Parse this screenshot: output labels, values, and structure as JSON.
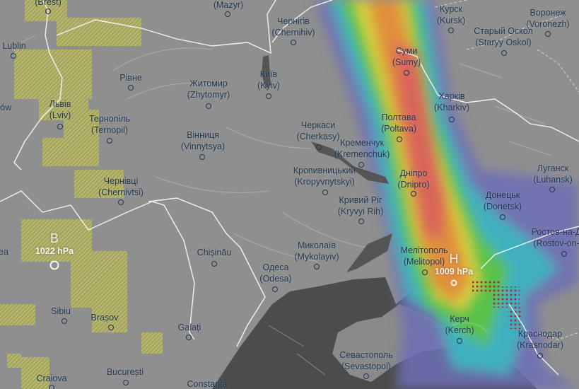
{
  "map": {
    "layer": "rain / precipitation with wind particles",
    "colors": {
      "land": "#8f8f8f",
      "sea": "#4a4a4a",
      "border": "#f2f2f2",
      "label": "#1f3550",
      "snow_hatch": "#c9c84a",
      "rain_light": "#6b6fb8",
      "rain_mid": "#3fb0c0",
      "rain_green": "#5cc24a",
      "rain_yellow": "#d8d040",
      "rain_orange": "#e0903a",
      "rain_heavy": "#d9665a",
      "thunder_dots": "#a0303a"
    },
    "pressure": [
      {
        "letter": "B",
        "value": "1022 hPa",
        "type": "high"
      },
      {
        "letter": "H",
        "value": "1009 hPa",
        "type": "low"
      }
    ],
    "cities": [
      {
        "name": "",
        "latin": "(Brest)"
      },
      {
        "name": "",
        "latin": "(Mazyr)"
      },
      {
        "name": "Чернігів",
        "latin": "(Chernihiv)"
      },
      {
        "name": "Lublin",
        "latin": ""
      },
      {
        "name": "Рівне",
        "latin": ""
      },
      {
        "name": "Житомир",
        "latin": "(Zhytomyr)"
      },
      {
        "name": "Київ",
        "latin": "(Kyiv)"
      },
      {
        "name": "zów",
        "latin": ""
      },
      {
        "name": "Львів",
        "latin": "(Lviv)"
      },
      {
        "name": "Тернопіль",
        "latin": "(Ternopil)"
      },
      {
        "name": "Вінниця",
        "latin": "(Vinnytsya)"
      },
      {
        "name": "Чернівці",
        "latin": "(Chernivtsi)"
      },
      {
        "name": "Черкаси",
        "latin": "(Cherkasy)"
      },
      {
        "name": "Кременчук",
        "latin": "(Kremenchuk)"
      },
      {
        "name": "Кропивницький",
        "latin": "(Kropyvnytskyi)"
      },
      {
        "name": "Суми",
        "latin": "(Sumy)"
      },
      {
        "name": "Курск",
        "latin": "(Kursk)"
      },
      {
        "name": "Воронеж",
        "latin": "(Voronezh)"
      },
      {
        "name": "Старый Оскол",
        "latin": "(Staryy Oskol)"
      },
      {
        "name": "Харків",
        "latin": "(Kharkiv)"
      },
      {
        "name": "Полтава",
        "latin": "(Poltava)"
      },
      {
        "name": "Дніпро",
        "latin": "(Dnipro)"
      },
      {
        "name": "Луганск",
        "latin": "(Luhansk)"
      },
      {
        "name": "Донецьк",
        "latin": "(Donetsk)"
      },
      {
        "name": "Кривий Ріг",
        "latin": "(Kryvyi Rih)"
      },
      {
        "name": "Ростов-на-Д",
        "latin": "(Rostov-on-"
      },
      {
        "name": "Мелітополь",
        "latin": "(Melitopol)"
      },
      {
        "name": "Миколаїв",
        "latin": "(Mykolayiv)"
      },
      {
        "name": "Одеса",
        "latin": "(Odesa)"
      },
      {
        "name": "Chișinău",
        "latin": ""
      },
      {
        "name": "ea",
        "latin": ""
      },
      {
        "name": "Sibiu",
        "latin": ""
      },
      {
        "name": "Brașov",
        "latin": ""
      },
      {
        "name": "Galați",
        "latin": ""
      },
      {
        "name": "București",
        "latin": ""
      },
      {
        "name": "Craiova",
        "latin": ""
      },
      {
        "name": "Constanța",
        "latin": ""
      },
      {
        "name": "Керч",
        "latin": "(Kerch)"
      },
      {
        "name": "Краснодар",
        "latin": "(Krasnodar)"
      },
      {
        "name": "Севастополь",
        "latin": "(Sevastopol)"
      }
    ]
  }
}
